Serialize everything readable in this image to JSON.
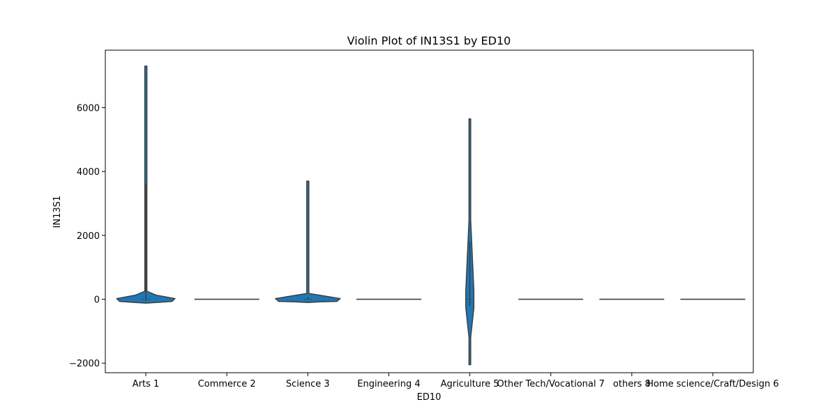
{
  "chart_data": {
    "type": "violin",
    "title": "Violin Plot of IN13S1 by ED10",
    "xlabel": "ED10",
    "ylabel": "IN13S1",
    "ylim": [
      -2300,
      7800
    ],
    "yticks": [
      -2000,
      0,
      2000,
      4000,
      6000
    ],
    "ytick_labels": [
      "−2000",
      "0",
      "2000",
      "4000",
      "6000"
    ],
    "grid": false,
    "legend": "none",
    "categories": [
      "Arts 1",
      "Commerce 2",
      "Science 3",
      "Engineering 4",
      "Agriculture 5",
      "Other Tech/Vocational 7",
      "others 8",
      "Home science/Craft/Design 6"
    ],
    "series": [
      {
        "violins": [
          {
            "min": -100,
            "max": 7300,
            "whisker_low": -30,
            "whisker_high": 3600,
            "body_max_halfwidth": 0.36
          },
          {
            "min": 0,
            "max": 0,
            "whisker_low": 0,
            "whisker_high": 0,
            "body_max_halfwidth": 0.4
          },
          {
            "min": -80,
            "max": 3700,
            "whisker_low": -20,
            "whisker_high": 60,
            "body_max_halfwidth": 0.4
          },
          {
            "min": 0,
            "max": 0,
            "whisker_low": 0,
            "whisker_high": 0,
            "body_max_halfwidth": 0.4
          },
          {
            "min": -2050,
            "max": 5650,
            "whisker_low": -200,
            "whisker_high": 1800,
            "body_max_halfwidth": 0.05
          },
          {
            "min": 0,
            "max": 0,
            "whisker_low": 0,
            "whisker_high": 0,
            "body_max_halfwidth": 0.4
          },
          {
            "min": 0,
            "max": 0,
            "whisker_low": 0,
            "whisker_high": 0,
            "body_max_halfwidth": 0.4
          },
          {
            "min": 0,
            "max": 0,
            "whisker_low": 0,
            "whisker_high": 0,
            "body_max_halfwidth": 0.4
          }
        ]
      }
    ]
  },
  "colors": {
    "violin_fill": "#1f77b4",
    "edge": "#3f3f3f",
    "axes": "#000000",
    "background": "#ffffff"
  }
}
